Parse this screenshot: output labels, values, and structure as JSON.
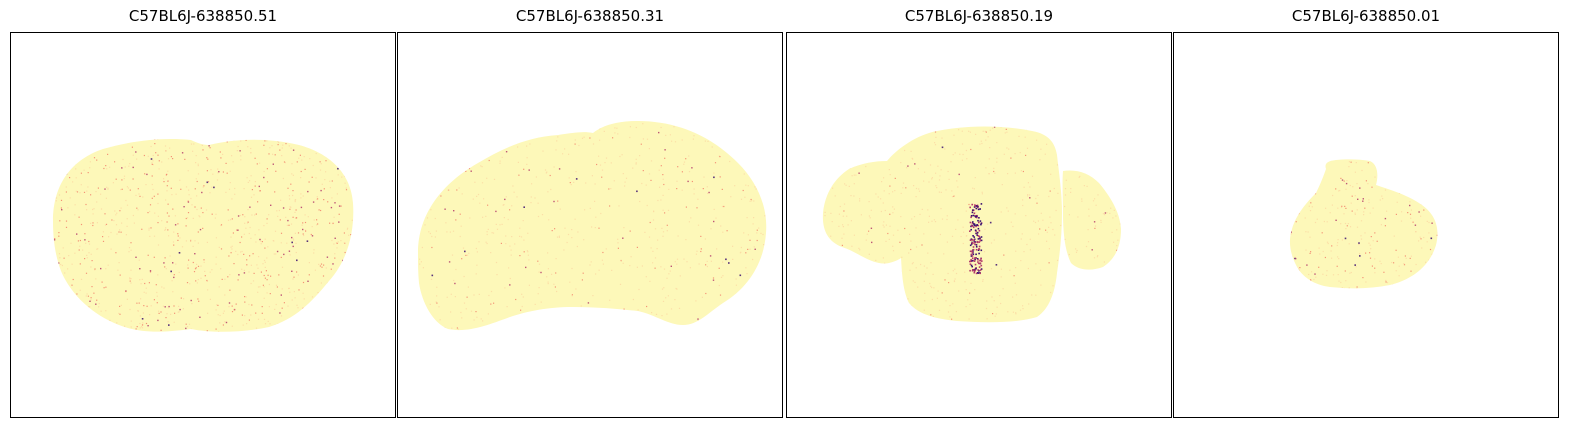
{
  "panels": [
    {
      "title": "C57BL6J-638850.51"
    },
    {
      "title": "C57BL6J-638850.31"
    },
    {
      "title": "C57BL6J-638850.19"
    },
    {
      "title": "C57BL6J-638850.01"
    }
  ],
  "colors": {
    "tissue": "#fdf8b9",
    "low": "#fbd9a3",
    "mid": "#f2826b",
    "high": "#b33a6b",
    "max": "#3b0f70",
    "frame": "#000000",
    "background": "#ffffff"
  }
}
